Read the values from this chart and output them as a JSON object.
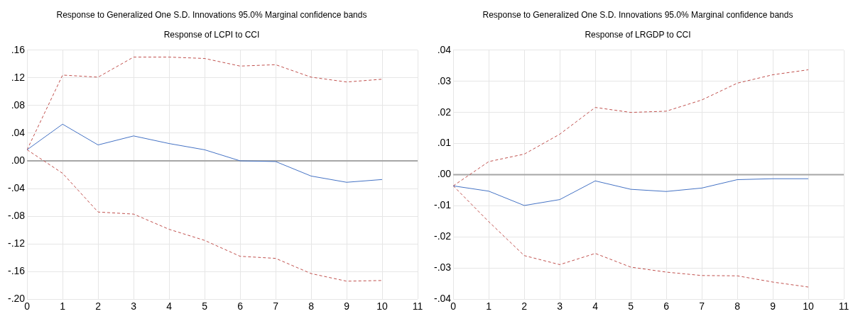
{
  "chart_data": [
    {
      "type": "line",
      "title": "Response to Generalized One S.D. Innovations 95.0% Marginal confidence bands",
      "subtitle": "Response of LCPI to CCI",
      "x": [
        0,
        1,
        2,
        3,
        4,
        5,
        6,
        7,
        8,
        9,
        10
      ],
      "series": [
        {
          "color": "#4472c4",
          "line_style": "solid",
          "values": [
            0.016,
            0.053,
            0.023,
            0.036,
            0.025,
            0.016,
            0.0,
            -0.001,
            -0.022,
            -0.031,
            -0.027
          ]
        },
        {
          "color": "#c0504d",
          "line_style": "dashed",
          "values": [
            0.016,
            0.124,
            0.121,
            0.15,
            0.15,
            0.148,
            0.137,
            0.139,
            0.121,
            0.114,
            0.118
          ]
        },
        {
          "color": "#c0504d",
          "line_style": "dashed",
          "values": [
            0.016,
            -0.018,
            -0.074,
            -0.077,
            -0.099,
            -0.115,
            -0.138,
            -0.141,
            -0.163,
            -0.174,
            -0.173
          ]
        }
      ],
      "xlim": [
        0,
        11
      ],
      "xticks": [
        0,
        1,
        2,
        3,
        4,
        5,
        6,
        7,
        8,
        9,
        10,
        11
      ],
      "ylim": [
        -0.2,
        0.16
      ],
      "yticks": [
        {
          "value": -0.2,
          "label": "-.20"
        },
        {
          "value": -0.16,
          "label": "-.16"
        },
        {
          "value": -0.12,
          "label": "-.12"
        },
        {
          "value": -0.08,
          "label": "-.08"
        },
        {
          "value": -0.04,
          "label": "-.04"
        },
        {
          "value": 0,
          "label": ".00"
        },
        {
          "value": 0.04,
          "label": ".04"
        },
        {
          "value": 0.08,
          "label": ".08"
        },
        {
          "value": 0.12,
          "label": ".12"
        },
        {
          "value": 0.16,
          "label": ".16"
        }
      ],
      "ref_lines": [
        {
          "axis": "y",
          "value": 0,
          "color": "#a6a6a6"
        }
      ],
      "grid": true,
      "legend": false,
      "marker": "none"
    },
    {
      "type": "line",
      "title": "Response to Generalized One S.D. Innovations 95.0% Marginal confidence bands",
      "subtitle": "Response of LRGDP to CCI",
      "x": [
        0,
        1,
        2,
        3,
        4,
        5,
        6,
        7,
        8,
        9,
        10
      ],
      "series": [
        {
          "color": "#4472c4",
          "line_style": "solid",
          "values": [
            -0.0036,
            -0.0053,
            -0.0099,
            -0.008,
            -0.002,
            -0.0047,
            -0.0054,
            -0.0043,
            -0.0016,
            -0.0013,
            -0.0013
          ]
        },
        {
          "color": "#c0504d",
          "line_style": "dashed",
          "values": [
            -0.0036,
            0.0042,
            0.0066,
            0.013,
            0.0216,
            0.02,
            0.0204,
            0.024,
            0.0294,
            0.0321,
            0.0337
          ]
        },
        {
          "color": "#c0504d",
          "line_style": "dashed",
          "values": [
            -0.0036,
            -0.0151,
            -0.026,
            -0.0289,
            -0.0253,
            -0.0297,
            -0.0313,
            -0.0324,
            -0.0325,
            -0.0345,
            -0.0361
          ]
        }
      ],
      "xlim": [
        0,
        11
      ],
      "xticks": [
        0,
        1,
        2,
        3,
        4,
        5,
        6,
        7,
        8,
        9,
        10,
        11
      ],
      "ylim": [
        -0.04,
        0.04
      ],
      "yticks": [
        {
          "value": -0.04,
          "label": "-.04"
        },
        {
          "value": -0.03,
          "label": "-.03"
        },
        {
          "value": -0.02,
          "label": "-.02"
        },
        {
          "value": -0.01,
          "label": "-.01"
        },
        {
          "value": 0,
          "label": ".00"
        },
        {
          "value": 0.01,
          "label": ".01"
        },
        {
          "value": 0.02,
          "label": ".02"
        },
        {
          "value": 0.03,
          "label": ".03"
        },
        {
          "value": 0.04,
          "label": ".04"
        }
      ],
      "ref_lines": [
        {
          "axis": "y",
          "value": 0,
          "color": "#a6a6a6"
        }
      ],
      "grid": true,
      "legend": false,
      "marker": "none"
    }
  ]
}
